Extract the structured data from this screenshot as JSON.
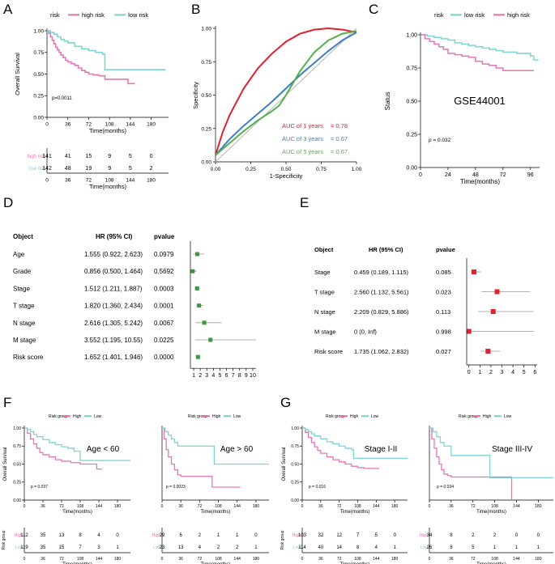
{
  "colors": {
    "high": "#e377b6",
    "low": "#7fd3d6",
    "forest_d": "#3a9a3e",
    "forest_e": "#e0212f",
    "roc1": "#e0212f",
    "roc3": "#3e7fc1",
    "roc5": "#52b04a"
  },
  "panel_labels": {
    "A": "A",
    "B": "B",
    "C": "C",
    "D": "D",
    "E": "E",
    "F": "F",
    "G": "G"
  },
  "chart_data": [
    {
      "id": "A",
      "type": "line",
      "subtype": "kaplan-meier",
      "legend": {
        "title": "risk",
        "entries": [
          "high risk",
          "low risk"
        ],
        "position": "top"
      },
      "xlabel": "Time(months)",
      "ylabel": "Overall Survival",
      "xticks": [
        0,
        36,
        72,
        108,
        144,
        180
      ],
      "yticks": [
        "0.00",
        "0.25",
        "0.50",
        "0.75",
        "1.00"
      ],
      "xlim": [
        0,
        210
      ],
      "ylim": [
        0,
        1
      ],
      "pvalue": "p=0.0011",
      "series": [
        {
          "name": "high risk",
          "color": "high",
          "x": [
            0,
            3,
            6,
            9,
            12,
            15,
            18,
            21,
            24,
            28,
            32,
            36,
            42,
            48,
            54,
            60,
            66,
            72,
            80,
            90,
            100,
            120,
            140,
            152
          ],
          "y": [
            1,
            0.97,
            0.93,
            0.89,
            0.85,
            0.81,
            0.78,
            0.75,
            0.72,
            0.69,
            0.66,
            0.64,
            0.62,
            0.6,
            0.57,
            0.54,
            0.52,
            0.5,
            0.49,
            0.48,
            0.44,
            0.44,
            0.39,
            0.39
          ]
        },
        {
          "name": "low risk",
          "color": "low",
          "x": [
            0,
            6,
            12,
            18,
            24,
            30,
            36,
            48,
            60,
            72,
            84,
            96,
            100,
            108,
            120,
            150,
            205
          ],
          "y": [
            1,
            0.98,
            0.96,
            0.93,
            0.9,
            0.88,
            0.86,
            0.82,
            0.79,
            0.77,
            0.75,
            0.73,
            0.55,
            0.55,
            0.55,
            0.55,
            0.55
          ]
        }
      ],
      "risk_table": {
        "rows": [
          "high risk",
          "low risk"
        ],
        "times": [
          0,
          36,
          72,
          108,
          144,
          180
        ],
        "values": [
          [
            141,
            41,
            15,
            9,
            5,
            0
          ],
          [
            142,
            48,
            19,
            9,
            5,
            2
          ]
        ],
        "xlabel": "Time(months)"
      }
    },
    {
      "id": "B",
      "type": "line",
      "subtype": "roc",
      "xlabel": "1-Specificity",
      "ylabel": "Specificity",
      "xticks": [
        "0.00",
        "0.25",
        "0.50",
        "0.75",
        "1.00"
      ],
      "yticks": [
        "0.00",
        "0.25",
        "0.50",
        "0.75",
        "1.00"
      ],
      "series": [
        {
          "name": "AUC of 1 years = 0.78",
          "color": "roc1",
          "x": [
            0,
            0.05,
            0.1,
            0.2,
            0.3,
            0.4,
            0.5,
            0.6,
            0.7,
            0.8,
            0.9,
            1
          ],
          "y": [
            0.05,
            0.22,
            0.35,
            0.55,
            0.7,
            0.81,
            0.9,
            0.96,
            0.99,
            1,
            0.99,
            0.97
          ]
        },
        {
          "name": "AUC of 3 years = 0.67",
          "color": "roc3",
          "x": [
            0,
            0.1,
            0.2,
            0.3,
            0.4,
            0.5,
            0.6,
            0.7,
            0.8,
            0.9,
            1
          ],
          "y": [
            0.05,
            0.17,
            0.27,
            0.36,
            0.45,
            0.55,
            0.65,
            0.74,
            0.83,
            0.91,
            0.97
          ]
        },
        {
          "name": "AUC of 5 years = 0.67",
          "color": "roc5",
          "x": [
            0,
            0.1,
            0.2,
            0.3,
            0.4,
            0.45,
            0.5,
            0.6,
            0.7,
            0.8,
            0.9,
            1
          ],
          "y": [
            0.05,
            0.14,
            0.23,
            0.31,
            0.38,
            0.42,
            0.5,
            0.68,
            0.82,
            0.91,
            0.96,
            0.98
          ]
        }
      ],
      "legend_text": [
        "AUC of 1 years",
        "= 0.78",
        "AUC of 3 years",
        "= 0.67",
        "AUC of 5 years",
        "= 0.67"
      ]
    },
    {
      "id": "C",
      "type": "line",
      "subtype": "kaplan-meier",
      "legend": {
        "title": "risk",
        "entries": [
          "low risk",
          "high risk"
        ],
        "position": "top"
      },
      "xlabel": "Time(months)",
      "ylabel": "Status",
      "xticks": [
        0,
        24,
        48,
        72,
        96
      ],
      "yticks": [
        "0.00",
        "0.25",
        "0.50",
        "0.75",
        "1.00"
      ],
      "xlim": [
        0,
        104
      ],
      "ylim": [
        0,
        1
      ],
      "pvalue": "p = 0.032",
      "annotation": "GSE44001",
      "series": [
        {
          "name": "low risk",
          "color": "low",
          "x": [
            0,
            6,
            12,
            18,
            24,
            30,
            36,
            42,
            48,
            54,
            60,
            66,
            72,
            78,
            84,
            90,
            96,
            99,
            103
          ],
          "y": [
            1,
            0.99,
            0.98,
            0.97,
            0.96,
            0.94,
            0.93,
            0.92,
            0.91,
            0.9,
            0.89,
            0.88,
            0.87,
            0.87,
            0.86,
            0.86,
            0.84,
            0.81,
            0.81
          ]
        },
        {
          "name": "high risk",
          "color": "high",
          "x": [
            0,
            4,
            8,
            12,
            16,
            20,
            24,
            30,
            36,
            42,
            48,
            54,
            60,
            66,
            72,
            78,
            84,
            90,
            96,
            99
          ],
          "y": [
            1,
            0.97,
            0.95,
            0.93,
            0.91,
            0.89,
            0.86,
            0.85,
            0.84,
            0.83,
            0.8,
            0.78,
            0.77,
            0.75,
            0.73,
            0.73,
            0.73,
            0.73,
            0.73,
            0.73
          ]
        }
      ]
    },
    {
      "id": "D",
      "type": "scatter",
      "subtype": "forest",
      "headers": [
        "Object",
        "HR (95% CI)",
        "pvalue"
      ],
      "rows": [
        {
          "object": "Age",
          "hr_text": "1.555 (0.922, 2.623)",
          "pvalue": "0.0979",
          "hr": 1.555,
          "lo": 0.922,
          "hi": 2.623
        },
        {
          "object": "Grade",
          "hr_text": "0.856 (0.500, 1.464)",
          "pvalue": "0.5692",
          "hr": 0.856,
          "lo": 0.5,
          "hi": 1.464
        },
        {
          "object": "Stage",
          "hr_text": "1.512 (1.211, 1.887)",
          "pvalue": "0.0003",
          "hr": 1.512,
          "lo": 1.211,
          "hi": 1.887
        },
        {
          "object": "T stage",
          "hr_text": "1.820 (1.360, 2.434)",
          "pvalue": "0.0001",
          "hr": 1.82,
          "lo": 1.36,
          "hi": 2.434
        },
        {
          "object": "N stage",
          "hr_text": "2.616 (1.305, 5.242)",
          "pvalue": "0.0067",
          "hr": 2.616,
          "lo": 1.305,
          "hi": 5.242
        },
        {
          "object": "M stage",
          "hr_text": "3.552 (1.195, 10.55)",
          "pvalue": "0.0225",
          "hr": 3.552,
          "lo": 1.195,
          "hi": 10.55
        },
        {
          "object": "Risk score",
          "hr_text": "1.652 (1.401, 1.946)",
          "pvalue": "0.0000",
          "hr": 1.652,
          "lo": 1.401,
          "hi": 1.946
        }
      ],
      "xticks": [
        1,
        2,
        3,
        4,
        5,
        6,
        7,
        8,
        9,
        10
      ],
      "xlim": [
        0.5,
        10.5
      ]
    },
    {
      "id": "E",
      "type": "scatter",
      "subtype": "forest",
      "headers": [
        "Object",
        "HR (95% CI)",
        "pvalue"
      ],
      "rows": [
        {
          "object": "Stage",
          "hr_text": "0.459 (0.189, 1.115)",
          "pvalue": "0.085",
          "hr": 0.459,
          "lo": 0.189,
          "hi": 1.115
        },
        {
          "object": "T stage",
          "hr_text": "2.560 (1.132, 5.561)",
          "pvalue": "0.023",
          "hr": 2.56,
          "lo": 1.132,
          "hi": 5.561
        },
        {
          "object": "N stage",
          "hr_text": "2.209 (0.829, 5.886)",
          "pvalue": "0.113",
          "hr": 2.209,
          "lo": 0.829,
          "hi": 5.886
        },
        {
          "object": "M stage",
          "hr_text": "0 (0, Inf)",
          "pvalue": "0.998",
          "hr": 0,
          "lo": 0,
          "hi": 5.9
        },
        {
          "object": "Risk score",
          "hr_text": "1.735 (1.062, 2.832)",
          "pvalue": "0.027",
          "hr": 1.735,
          "lo": 1.062,
          "hi": 2.832
        }
      ],
      "xticks": [
        0,
        1,
        2,
        3,
        4,
        5,
        6
      ],
      "xlim": [
        -0.2,
        6.2
      ]
    },
    {
      "id": "F1",
      "type": "line",
      "subtype": "kaplan-meier",
      "legend": {
        "title": "Risk group",
        "entries": [
          "High",
          "Low"
        ]
      },
      "xlabel": "Time(months)",
      "ylabel": "Overall Survival",
      "xticks": [
        0,
        36,
        72,
        108,
        144,
        180
      ],
      "yticks": [
        "0.00",
        "0.25",
        "0.50",
        "0.75",
        "1.00"
      ],
      "xlim": [
        0,
        205
      ],
      "pvalue": "p = 0.037",
      "annotation": "Age < 60",
      "series": [
        {
          "name": "High",
          "color": "high",
          "x": [
            0,
            6,
            12,
            18,
            24,
            30,
            36,
            48,
            60,
            72,
            90,
            108,
            120,
            140,
            150
          ],
          "y": [
            1,
            0.93,
            0.85,
            0.78,
            0.72,
            0.66,
            0.63,
            0.6,
            0.56,
            0.54,
            0.52,
            0.5,
            0.5,
            0.43,
            0.43
          ]
        },
        {
          "name": "Low",
          "color": "low",
          "x": [
            0,
            6,
            12,
            18,
            24,
            36,
            48,
            60,
            72,
            84,
            96,
            108,
            120,
            150,
            205
          ],
          "y": [
            1,
            0.98,
            0.95,
            0.91,
            0.88,
            0.84,
            0.8,
            0.77,
            0.74,
            0.72,
            0.68,
            0.55,
            0.55,
            0.55,
            0.55
          ]
        }
      ],
      "risk_table": {
        "rows": [
          "High",
          "Low"
        ],
        "times": [
          0,
          36,
          72,
          108,
          144,
          180
        ],
        "values": [
          [
            112,
            35,
            13,
            8,
            4,
            0
          ],
          [
            119,
            35,
            15,
            7,
            3,
            1
          ]
        ],
        "title": "Risk group",
        "xlabel": "Time(months)"
      }
    },
    {
      "id": "F2",
      "type": "line",
      "subtype": "kaplan-meier",
      "legend": {
        "title": "Risk group",
        "entries": [
          "High",
          "Low"
        ]
      },
      "xlabel": "Time(months)",
      "ylabel": "",
      "xticks": [
        0,
        36,
        72,
        108,
        144,
        180
      ],
      "yticks": [],
      "xlim": [
        0,
        205
      ],
      "pvalue": "p = 0.0023",
      "annotation": "Age > 60",
      "series": [
        {
          "name": "High",
          "color": "high",
          "x": [
            0,
            4,
            8,
            12,
            18,
            24,
            30,
            36,
            48,
            60,
            72,
            84,
            96,
            110,
            130,
            150
          ],
          "y": [
            1,
            0.85,
            0.7,
            0.6,
            0.5,
            0.42,
            0.35,
            0.33,
            0.33,
            0.33,
            0.33,
            0.33,
            0.18,
            0.18,
            0.18,
            0.18
          ]
        },
        {
          "name": "Low",
          "color": "low",
          "x": [
            0,
            6,
            12,
            18,
            24,
            30,
            36,
            72,
            96,
            100,
            150,
            205
          ],
          "y": [
            1,
            0.95,
            0.9,
            0.85,
            0.8,
            0.75,
            0.75,
            0.75,
            0.75,
            0.5,
            0.5,
            0.5
          ]
        }
      ],
      "risk_table": {
        "rows": [
          "High",
          "Low"
        ],
        "times": [
          0,
          36,
          72,
          108,
          144,
          180
        ],
        "values": [
          [
            29,
            6,
            2,
            1,
            1,
            0
          ],
          [
            23,
            13,
            4,
            2,
            2,
            1
          ]
        ],
        "xlabel": "Time(months)"
      }
    },
    {
      "id": "G1",
      "type": "line",
      "subtype": "kaplan-meier",
      "legend": {
        "title": "Risk group",
        "entries": [
          "High",
          "Low"
        ]
      },
      "xlabel": "Time(months)",
      "ylabel": "Overall Survival",
      "xticks": [
        0,
        36,
        72,
        108,
        144,
        180
      ],
      "yticks": [
        "0.00",
        "0.25",
        "0.50",
        "0.75",
        "1.00"
      ],
      "xlim": [
        0,
        205
      ],
      "pvalue": "p = 0.016",
      "annotation": "Stage I-II",
      "series": [
        {
          "name": "High",
          "color": "high",
          "x": [
            0,
            6,
            12,
            18,
            24,
            30,
            36,
            48,
            60,
            72,
            84,
            96,
            108,
            120,
            140,
            150
          ],
          "y": [
            1,
            0.94,
            0.87,
            0.8,
            0.74,
            0.69,
            0.65,
            0.6,
            0.56,
            0.53,
            0.5,
            0.47,
            0.45,
            0.44,
            0.44,
            0.44
          ]
        },
        {
          "name": "Low",
          "color": "low",
          "x": [
            0,
            6,
            12,
            18,
            24,
            36,
            48,
            60,
            72,
            84,
            96,
            100,
            120,
            150,
            205
          ],
          "y": [
            1,
            0.98,
            0.95,
            0.92,
            0.89,
            0.85,
            0.81,
            0.78,
            0.75,
            0.72,
            0.7,
            0.58,
            0.58,
            0.58,
            0.58
          ]
        }
      ],
      "risk_table": {
        "rows": [
          "High",
          "Low"
        ],
        "times": [
          0,
          36,
          72,
          108,
          144,
          180
        ],
        "values": [
          [
            103,
            32,
            12,
            7,
            5,
            0
          ],
          [
            114,
            40,
            14,
            8,
            4,
            1
          ]
        ],
        "title": "Risk group",
        "xlabel": "Time(months)"
      }
    },
    {
      "id": "G2",
      "type": "line",
      "subtype": "kaplan-meier",
      "legend": {
        "title": "Risk group",
        "entries": [
          "High",
          "Low"
        ]
      },
      "xlabel": "Time(months)",
      "ylabel": "",
      "xticks": [
        0,
        36,
        72,
        108,
        144,
        180
      ],
      "yticks": [],
      "xlim": [
        0,
        205
      ],
      "pvalue": "p = 0.034",
      "annotation": "Stage III-IV",
      "series": [
        {
          "name": "High",
          "color": "high",
          "x": [
            0,
            4,
            8,
            12,
            16,
            20,
            24,
            30,
            36,
            60,
            84,
            100,
            130,
            136,
            136
          ],
          "y": [
            1,
            0.85,
            0.72,
            0.6,
            0.5,
            0.42,
            0.36,
            0.34,
            0.32,
            0.32,
            0.32,
            0.32,
            0.32,
            0.32,
            0
          ]
        },
        {
          "name": "Low",
          "color": "low",
          "x": [
            0,
            6,
            12,
            18,
            24,
            36,
            60,
            96,
            100,
            150,
            205
          ],
          "y": [
            1,
            0.95,
            0.88,
            0.8,
            0.75,
            0.62,
            0.62,
            0.62,
            0.31,
            0.31,
            0.31
          ]
        }
      ],
      "risk_table": {
        "rows": [
          "High",
          "Low"
        ],
        "times": [
          0,
          36,
          72,
          108,
          144,
          180
        ],
        "values": [
          [
            34,
            8,
            2,
            2,
            0,
            0
          ],
          [
            26,
            8,
            5,
            1,
            1,
            1
          ]
        ],
        "xlabel": "Time(months)"
      }
    }
  ]
}
